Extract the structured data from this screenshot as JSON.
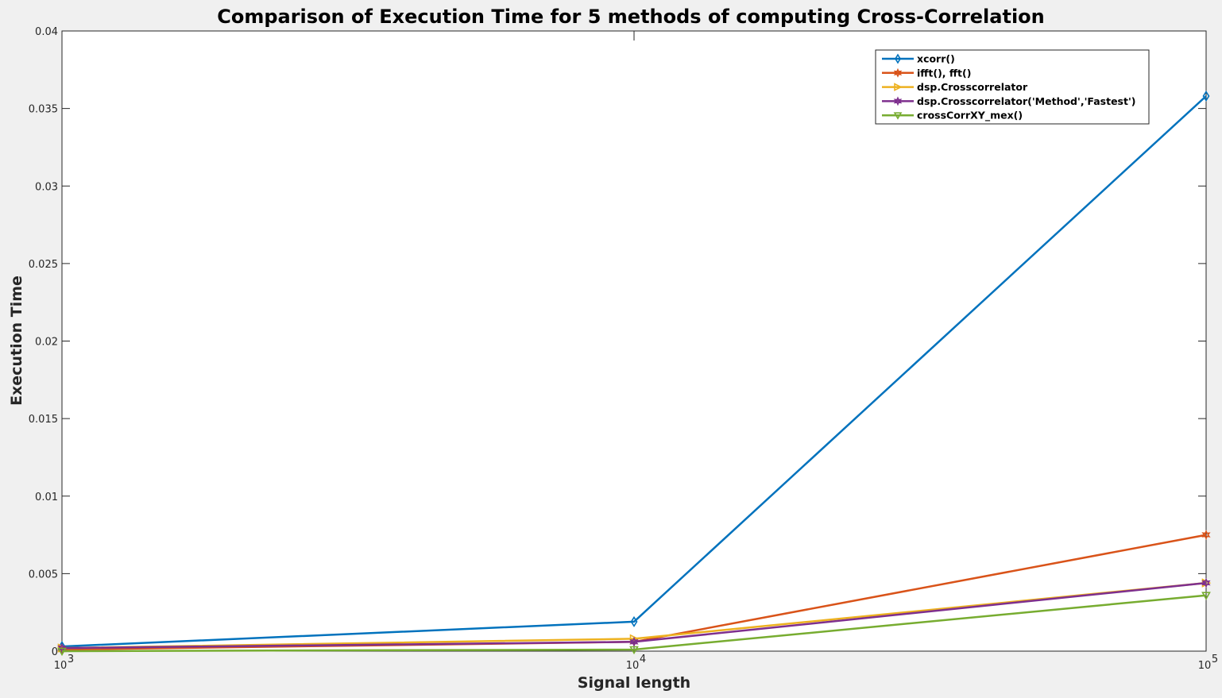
{
  "chart_data": {
    "type": "line",
    "title": "Comparison of Execution Time for 5 methods of computing Cross-Correlation",
    "xlabel": "Signal length",
    "ylabel": "Execution Time",
    "xscale": "log",
    "xlim": [
      1000,
      100000
    ],
    "ylim": [
      0,
      0.04
    ],
    "x": [
      1000,
      10000,
      100000
    ],
    "x_ticks": [
      {
        "value": 1000,
        "base": "10",
        "exp": "3"
      },
      {
        "value": 10000,
        "base": "10",
        "exp": "4"
      },
      {
        "value": 100000,
        "base": "10",
        "exp": "5"
      }
    ],
    "y_ticks": [
      {
        "value": 0,
        "label": "0"
      },
      {
        "value": 0.005,
        "label": "0.005"
      },
      {
        "value": 0.01,
        "label": "0.01"
      },
      {
        "value": 0.015,
        "label": "0.015"
      },
      {
        "value": 0.02,
        "label": "0.02"
      },
      {
        "value": 0.025,
        "label": "0.025"
      },
      {
        "value": 0.03,
        "label": "0.03"
      },
      {
        "value": 0.035,
        "label": "0.035"
      },
      {
        "value": 0.04,
        "label": "0.04"
      }
    ],
    "grid": false,
    "legend_position": "top-right",
    "series": [
      {
        "name": "xcorr()",
        "color": "#0072bd",
        "marker": "diamond",
        "values": [
          0.0003,
          0.0019,
          0.0358
        ]
      },
      {
        "name": "ifft(), fft()",
        "color": "#d95319",
        "marker": "hexagram",
        "values": [
          0.0001,
          0.0006,
          0.0075
        ]
      },
      {
        "name": "dsp.Crosscorrelator",
        "color": "#edb120",
        "marker": "triangle-right",
        "values": [
          0.0002,
          0.0008,
          0.0044
        ]
      },
      {
        "name": "dsp.Crosscorrelator('Method','Fastest')",
        "color": "#7e2f8e",
        "marker": "hexagram",
        "values": [
          0.0002,
          0.0006,
          0.0044
        ]
      },
      {
        "name": "crossCorrXY_mex()",
        "color": "#77ac30",
        "marker": "triangle-down",
        "values": [
          0.0,
          0.0001,
          0.0036
        ]
      }
    ]
  }
}
